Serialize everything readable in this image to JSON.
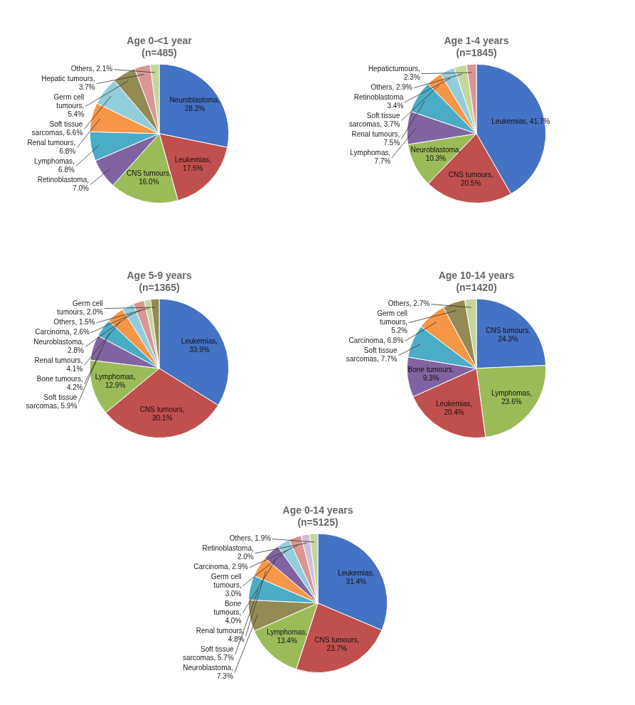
{
  "chart_data": [
    {
      "type": "pie",
      "title": "Age 0-<1 year\n(n=485)",
      "categories": [
        "Neuroblastoma,\n28.2%",
        "Leukemias,\n17.5%",
        "CNS tumours,\n16.0%",
        "Retinoblastoma,\n7.0%",
        "Lymphomas,\n6.8%",
        "Renal tumours,\n6.8%",
        "Soft tissue\nsarcomas, 6.6%",
        "Germ cell\ntumours,\n5.4%",
        "Hepatic tumours,\n3.7%",
        "Others, 2.1%"
      ],
      "values": [
        28.2,
        17.5,
        16.0,
        7.0,
        6.8,
        6.8,
        6.6,
        5.4,
        3.7,
        2.1
      ],
      "colors": [
        "#4472C4",
        "#C0504D",
        "#9BBB59",
        "#8064A2",
        "#4BACC6",
        "#F79646",
        "#92CDDC",
        "#948A54",
        "#D99694",
        "#C3D69B"
      ]
    },
    {
      "type": "pie",
      "title": "Age 1-4 years\n(n=1845)",
      "categories": [
        "Leukemias, 41.7%",
        "CNS tumours,\n20.5%",
        "Neuroblastoma,\n10.3%",
        "Lymphomas,\n7.7%",
        "Renal tumours,\n7.5%",
        "Soft tissue\nsarcomas, 3.7%",
        "Retinoblastoma\n3.4%",
        "Others, 2.9%",
        "Hepatictumours,\n2.3%"
      ],
      "values": [
        41.7,
        20.5,
        10.3,
        7.7,
        7.5,
        3.7,
        3.4,
        2.9,
        2.3
      ],
      "colors": [
        "#4472C4",
        "#C0504D",
        "#9BBB59",
        "#8064A2",
        "#4BACC6",
        "#F79646",
        "#92CDDC",
        "#C3D69B",
        "#D99694"
      ]
    },
    {
      "type": "pie",
      "title": "Age 5-9 years\n(n=1365)",
      "categories": [
        "Leukemias,\n33.9%",
        "CNS tumours,\n30.1%",
        "Lymphomas,\n12.9%",
        "Soft tissue\nsarcomas, 5.9%",
        "Bone tumours,\n4.2%",
        "Renal tumours,\n4.1%",
        "Neuroblastoma,\n2.8%",
        "Carcinoma, 2.6%",
        "Others, 1.5%",
        "Germ cell\ntumours, 2.0%"
      ],
      "values": [
        33.9,
        30.1,
        12.9,
        5.9,
        4.2,
        4.1,
        2.8,
        2.6,
        1.5,
        2.0
      ],
      "colors": [
        "#4472C4",
        "#C0504D",
        "#9BBB59",
        "#8064A2",
        "#4BACC6",
        "#F79646",
        "#92CDDC",
        "#D99694",
        "#C3D69B",
        "#948A54"
      ]
    },
    {
      "type": "pie",
      "title": "Age 10-14 years\n(n=1420)",
      "categories": [
        "CNS tumours,\n24.3%",
        "Lymphomas,\n23.6%",
        "Leukemias,\n20.4%",
        "Bone tumours,\n9.3%",
        "Soft tissue\nsarcomas, 7.7%",
        "Carcinoma, 6.8%",
        "Germ cell\ntumours,\n5.2%",
        "Others, 2.7%"
      ],
      "values": [
        24.3,
        23.6,
        20.4,
        9.3,
        7.7,
        6.8,
        5.2,
        2.7
      ],
      "colors": [
        "#4472C4",
        "#9BBB59",
        "#C0504D",
        "#8064A2",
        "#4BACC6",
        "#F79646",
        "#948A54",
        "#C3D69B"
      ]
    },
    {
      "type": "pie",
      "title": "Age 0-14 years\n(n=5125)",
      "categories": [
        "Leukemias,\n31.4%",
        "CNS tumours,\n23.7%",
        "Lymphomas,\n13.4%",
        "Neuroblastoma,\n7.3%",
        "Soft tissue\nsarcomas, 5.7%",
        "Renal tumours,\n4.8%",
        "Bone\ntumours,\n4.0%",
        "Germ cell\ntumours,\n3.0%",
        "Carcinoma, 2.9%",
        "Retinoblastoma,\n2.0%",
        "Others, 1.9%"
      ],
      "values": [
        31.4,
        23.7,
        13.4,
        7.3,
        5.7,
        4.8,
        4.0,
        3.0,
        2.9,
        2.0,
        1.9
      ],
      "colors": [
        "#4472C4",
        "#C0504D",
        "#9BBB59",
        "#948A54",
        "#4BACC6",
        "#F79646",
        "#8064A2",
        "#92CDDC",
        "#D99694",
        "#CCC0DA",
        "#C3D69B"
      ]
    }
  ]
}
